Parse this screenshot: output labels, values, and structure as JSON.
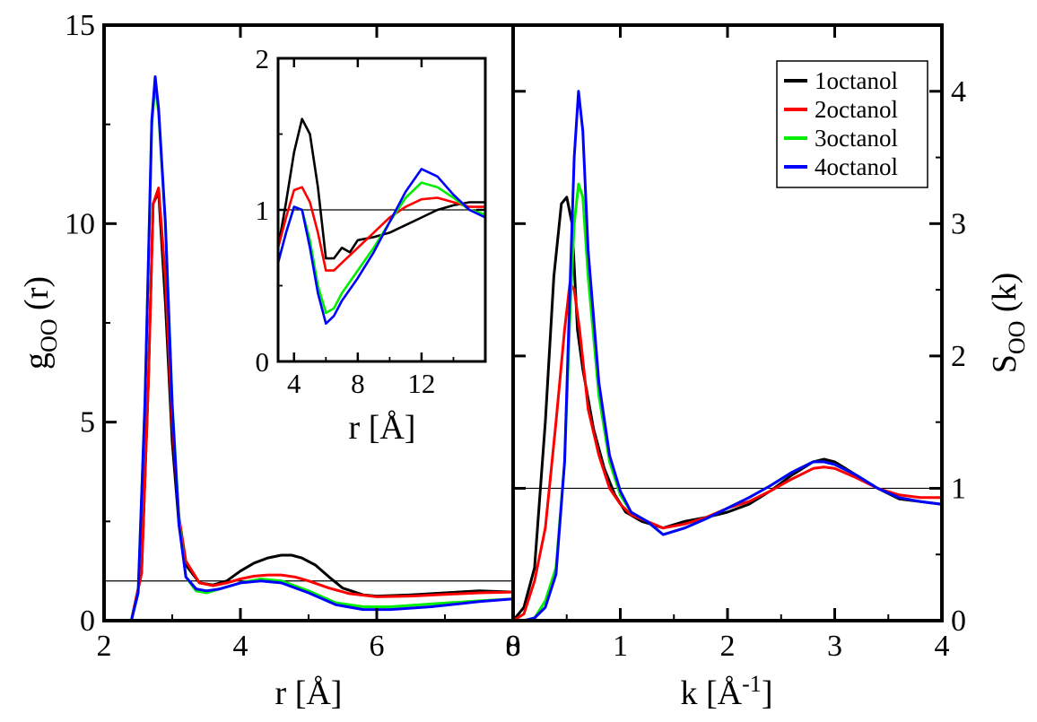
{
  "chart_data": [
    {
      "id": "left",
      "type": "line",
      "xlabel": "r [Å]",
      "ylabel": {
        "main": "g",
        "sub": "OO",
        "tail": " (r)"
      },
      "xlim": [
        2,
        8
      ],
      "ylim": [
        0,
        15
      ],
      "xticks": [
        "2",
        "4",
        "6",
        "8"
      ],
      "yticks": [
        "0",
        "5",
        "10",
        "15"
      ],
      "reference_line": 1,
      "series": [
        {
          "name": "1octanol",
          "color": "#000000",
          "x": [
            2.4,
            2.55,
            2.65,
            2.72,
            2.8,
            2.9,
            3.0,
            3.1,
            3.2,
            3.4,
            3.6,
            3.8,
            4.0,
            4.2,
            4.4,
            4.6,
            4.75,
            4.9,
            5.1,
            5.3,
            5.5,
            5.8,
            6.0,
            6.5,
            7.0,
            7.5,
            8.0
          ],
          "y": [
            0,
            1.2,
            6.0,
            10.5,
            10.8,
            8.0,
            4.5,
            2.4,
            1.4,
            0.95,
            0.9,
            1.0,
            1.25,
            1.45,
            1.58,
            1.65,
            1.65,
            1.58,
            1.4,
            1.1,
            0.82,
            0.65,
            0.62,
            0.65,
            0.7,
            0.75,
            0.72
          ]
        },
        {
          "name": "2octanol",
          "color": "#ff0000",
          "x": [
            2.4,
            2.55,
            2.65,
            2.72,
            2.8,
            2.9,
            3.0,
            3.1,
            3.2,
            3.4,
            3.6,
            3.8,
            4.0,
            4.2,
            4.4,
            4.6,
            4.8,
            5.0,
            5.3,
            5.6,
            6.0,
            6.5,
            7.0,
            7.5,
            8.0
          ],
          "y": [
            0,
            1.2,
            6.0,
            10.5,
            10.9,
            8.6,
            5.0,
            2.6,
            1.5,
            0.95,
            0.88,
            0.95,
            1.05,
            1.12,
            1.15,
            1.15,
            1.1,
            1.0,
            0.82,
            0.68,
            0.6,
            0.62,
            0.66,
            0.7,
            0.72
          ]
        },
        {
          "name": "3octanol",
          "color": "#00ee00",
          "x": [
            2.4,
            2.5,
            2.6,
            2.7,
            2.75,
            2.8,
            2.9,
            3.0,
            3.1,
            3.2,
            3.35,
            3.5,
            3.7,
            4.0,
            4.3,
            4.6,
            5.0,
            5.4,
            5.8,
            6.2,
            6.8,
            7.5,
            8.0
          ],
          "y": [
            0,
            0.7,
            5.5,
            12.5,
            13.5,
            12.8,
            10.0,
            5.5,
            2.5,
            1.1,
            0.75,
            0.7,
            0.8,
            0.95,
            1.05,
            1.0,
            0.75,
            0.45,
            0.35,
            0.35,
            0.42,
            0.5,
            0.55
          ]
        },
        {
          "name": "4octanol",
          "color": "#0000ff",
          "x": [
            2.4,
            2.5,
            2.6,
            2.7,
            2.75,
            2.8,
            2.9,
            3.0,
            3.1,
            3.2,
            3.35,
            3.5,
            3.7,
            4.0,
            4.3,
            4.6,
            5.0,
            5.4,
            5.8,
            6.2,
            6.8,
            7.5,
            8.0
          ],
          "y": [
            0,
            0.7,
            5.5,
            12.6,
            13.7,
            12.9,
            10.0,
            5.4,
            2.4,
            1.1,
            0.8,
            0.75,
            0.8,
            0.95,
            1.0,
            0.95,
            0.7,
            0.4,
            0.28,
            0.28,
            0.35,
            0.48,
            0.55
          ]
        }
      ]
    },
    {
      "id": "inset",
      "type": "line",
      "xlabel": "r [Å]",
      "xlim": [
        3,
        16
      ],
      "ylim": [
        0,
        2
      ],
      "xticks": [
        "4",
        "8",
        "12"
      ],
      "yticks": [
        "0",
        "1",
        "2"
      ],
      "reference_line": 1,
      "series": [
        {
          "name": "1octanol",
          "color": "#000000",
          "x": [
            3,
            3.5,
            4.0,
            4.5,
            5.0,
            5.5,
            6.0,
            6.5,
            7.0,
            7.5,
            8.0,
            9.0,
            10.0,
            11.0,
            12.0,
            13.0,
            14.0,
            15.0,
            16.0
          ],
          "y": [
            0.75,
            1.05,
            1.38,
            1.6,
            1.5,
            1.15,
            0.68,
            0.68,
            0.75,
            0.72,
            0.8,
            0.82,
            0.85,
            0.9,
            0.95,
            1.0,
            1.03,
            1.05,
            1.05
          ]
        },
        {
          "name": "2octanol",
          "color": "#ff0000",
          "x": [
            3,
            3.5,
            4.0,
            4.5,
            5.0,
            5.5,
            6.0,
            6.5,
            7.0,
            8.0,
            9.0,
            10.0,
            11.0,
            12.0,
            13.0,
            14.0,
            15.0,
            16.0
          ],
          "y": [
            0.75,
            0.95,
            1.13,
            1.15,
            1.05,
            0.85,
            0.6,
            0.6,
            0.65,
            0.75,
            0.85,
            0.95,
            1.02,
            1.07,
            1.08,
            1.05,
            1.02,
            1.02
          ]
        },
        {
          "name": "3octanol",
          "color": "#00ee00",
          "x": [
            3,
            3.5,
            4.0,
            4.5,
            5.0,
            5.5,
            6.0,
            6.5,
            7.0,
            8.0,
            9.0,
            10.0,
            11.0,
            12.0,
            13.0,
            14.0,
            15.0,
            16.0
          ],
          "y": [
            0.65,
            0.85,
            1.02,
            1.0,
            0.8,
            0.5,
            0.32,
            0.35,
            0.45,
            0.6,
            0.75,
            0.92,
            1.08,
            1.18,
            1.15,
            1.08,
            1.0,
            0.97
          ]
        },
        {
          "name": "4octanol",
          "color": "#0000ff",
          "x": [
            3,
            3.5,
            4.0,
            4.5,
            5.0,
            5.5,
            6.0,
            6.5,
            7.0,
            8.0,
            9.0,
            10.0,
            11.0,
            12.0,
            13.0,
            14.0,
            15.0,
            16.0
          ],
          "y": [
            0.65,
            0.85,
            1.02,
            1.0,
            0.75,
            0.45,
            0.25,
            0.3,
            0.4,
            0.55,
            0.72,
            0.92,
            1.12,
            1.27,
            1.22,
            1.1,
            1.0,
            0.95
          ]
        }
      ]
    },
    {
      "id": "right",
      "type": "line",
      "xlabel": {
        "main": "k [Å",
        "sup": "-1",
        "tail": "]"
      },
      "ylabel": {
        "main": "S",
        "sub": "OO",
        "tail": " (k)"
      },
      "xlim": [
        0,
        4
      ],
      "ylim": [
        0,
        4.5
      ],
      "xticks": [
        "0",
        "1",
        "2",
        "3",
        "4"
      ],
      "yticks": [
        "0",
        "1",
        "2",
        "3",
        "4"
      ],
      "reference_line": 1,
      "series": [
        {
          "name": "1octanol",
          "color": "#000000",
          "x": [
            0,
            0.1,
            0.2,
            0.3,
            0.38,
            0.45,
            0.5,
            0.55,
            0.6,
            0.65,
            0.75,
            0.85,
            0.95,
            1.05,
            1.2,
            1.4,
            1.6,
            1.8,
            2.0,
            2.2,
            2.4,
            2.6,
            2.8,
            2.9,
            3.0,
            3.2,
            3.4,
            3.6,
            3.8,
            4.0
          ],
          "y": [
            0,
            0.1,
            0.4,
            1.5,
            2.6,
            3.15,
            3.2,
            3.0,
            2.2,
            1.9,
            1.45,
            1.15,
            0.95,
            0.82,
            0.75,
            0.7,
            0.75,
            0.78,
            0.82,
            0.88,
            0.98,
            1.1,
            1.2,
            1.22,
            1.2,
            1.1,
            1.0,
            0.92,
            0.9,
            0.88
          ]
        },
        {
          "name": "2octanol",
          "color": "#ff0000",
          "x": [
            0,
            0.1,
            0.2,
            0.3,
            0.4,
            0.48,
            0.53,
            0.57,
            0.62,
            0.7,
            0.8,
            0.9,
            1.0,
            1.1,
            1.25,
            1.4,
            1.6,
            1.8,
            2.0,
            2.2,
            2.4,
            2.6,
            2.8,
            2.9,
            3.0,
            3.2,
            3.4,
            3.6,
            3.8,
            4.0
          ],
          "y": [
            0,
            0.05,
            0.3,
            0.7,
            1.5,
            2.2,
            2.55,
            2.5,
            2.2,
            1.6,
            1.25,
            1.0,
            0.88,
            0.8,
            0.75,
            0.7,
            0.73,
            0.78,
            0.85,
            0.9,
            0.98,
            1.07,
            1.15,
            1.16,
            1.15,
            1.08,
            1.0,
            0.95,
            0.93,
            0.93
          ]
        },
        {
          "name": "3octanol",
          "color": "#00ee00",
          "x": [
            0.1,
            0.2,
            0.3,
            0.4,
            0.48,
            0.53,
            0.57,
            0.61,
            0.65,
            0.7,
            0.8,
            0.9,
            1.0,
            1.1,
            1.25,
            1.4,
            1.6,
            1.8,
            2.0,
            2.2,
            2.4,
            2.6,
            2.8,
            2.9,
            3.0,
            3.2,
            3.4,
            3.6,
            3.8,
            4.0
          ],
          "y": [
            0,
            0.02,
            0.15,
            0.4,
            1.2,
            2.3,
            3.0,
            3.3,
            3.2,
            2.6,
            1.7,
            1.2,
            0.95,
            0.82,
            0.75,
            0.65,
            0.7,
            0.77,
            0.85,
            0.93,
            1.02,
            1.12,
            1.2,
            1.2,
            1.18,
            1.1,
            1.0,
            0.93,
            0.9,
            0.88
          ]
        },
        {
          "name": "4octanol",
          "color": "#0000ff",
          "x": [
            0.1,
            0.2,
            0.3,
            0.4,
            0.48,
            0.53,
            0.57,
            0.61,
            0.65,
            0.7,
            0.8,
            0.9,
            1.0,
            1.1,
            1.25,
            1.4,
            1.6,
            1.8,
            2.0,
            2.2,
            2.4,
            2.6,
            2.8,
            2.9,
            3.0,
            3.2,
            3.4,
            3.6,
            3.8,
            4.0
          ],
          "y": [
            0,
            0.02,
            0.1,
            0.35,
            1.2,
            2.5,
            3.5,
            4.0,
            3.7,
            2.8,
            1.8,
            1.25,
            0.98,
            0.82,
            0.75,
            0.65,
            0.7,
            0.77,
            0.85,
            0.93,
            1.02,
            1.12,
            1.2,
            1.2,
            1.18,
            1.1,
            1.0,
            0.93,
            0.9,
            0.88
          ]
        }
      ]
    }
  ],
  "legend": {
    "placement": "top-right",
    "entries": [
      {
        "label": "1octanol",
        "color": "#000000"
      },
      {
        "label": "2octanol",
        "color": "#ff0000"
      },
      {
        "label": "3octanol",
        "color": "#00ee00"
      },
      {
        "label": "4octanol",
        "color": "#0000ff"
      }
    ]
  }
}
